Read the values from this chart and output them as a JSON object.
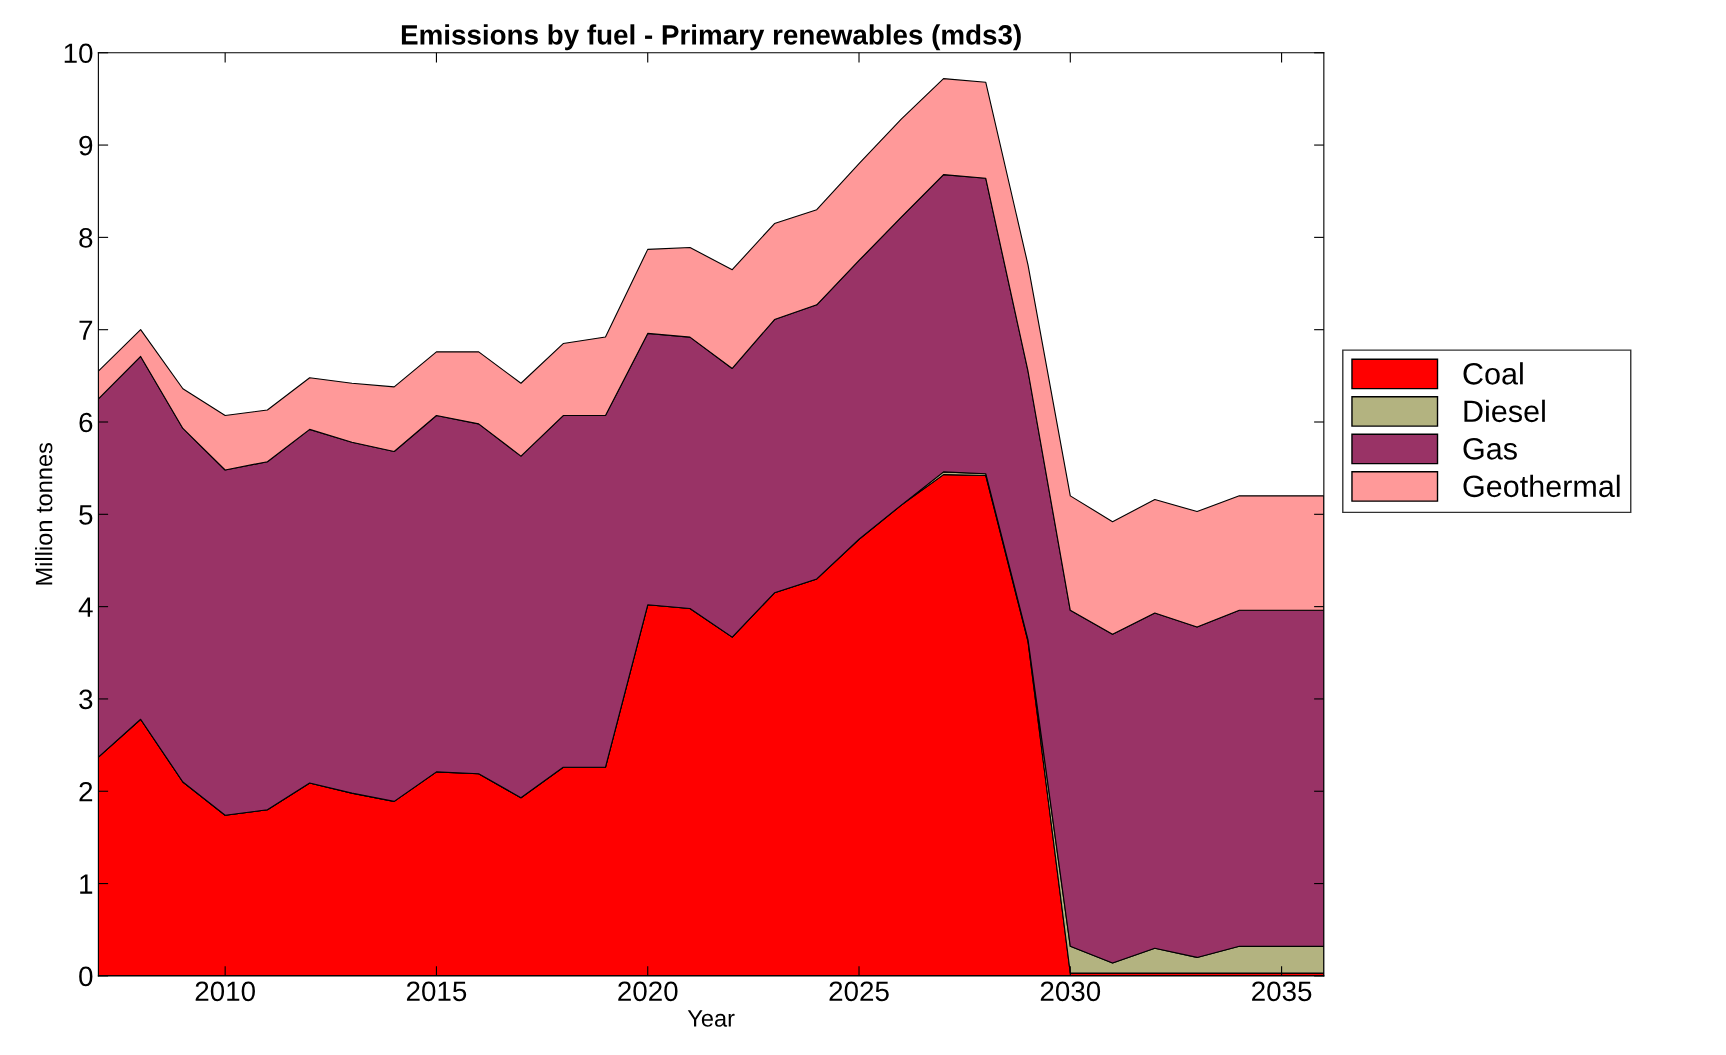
{
  "chart_data": {
    "type": "area",
    "stacked": true,
    "title": "Emissions by fuel - Primary renewables (mds3)",
    "xlabel": "Year",
    "ylabel": "Million tonnes",
    "x": [
      2007,
      2008,
      2009,
      2010,
      2011,
      2012,
      2013,
      2014,
      2015,
      2016,
      2017,
      2018,
      2019,
      2020,
      2021,
      2022,
      2023,
      2024,
      2025,
      2026,
      2027,
      2028,
      2029,
      2030,
      2031,
      2032,
      2033,
      2034,
      2035,
      2036
    ],
    "series": [
      {
        "name": "Coal",
        "color": "#ff0000",
        "values": [
          2.37,
          2.78,
          2.1,
          1.74,
          1.8,
          2.09,
          1.98,
          1.89,
          2.21,
          2.19,
          1.93,
          2.26,
          2.26,
          4.02,
          3.98,
          3.67,
          4.15,
          4.3,
          4.73,
          5.1,
          5.43,
          5.42,
          3.62,
          0.03,
          0.03,
          0.03,
          0.03,
          0.03,
          0.03,
          0.03
        ]
      },
      {
        "name": "Diesel",
        "color": "#b3b380",
        "values": [
          0,
          0,
          0,
          0,
          0,
          0,
          0,
          0,
          0,
          0,
          0,
          0,
          0,
          0,
          0,
          0,
          0,
          0,
          0,
          0,
          0.03,
          0.02,
          0.02,
          0.29,
          0.11,
          0.27,
          0.17,
          0.29,
          0.29,
          0.29
        ]
      },
      {
        "name": "Gas",
        "color": "#993366",
        "values": [
          3.88,
          3.93,
          3.83,
          3.74,
          3.77,
          3.83,
          3.8,
          3.79,
          3.86,
          3.79,
          3.7,
          3.81,
          3.81,
          2.94,
          2.94,
          2.91,
          2.96,
          2.97,
          3.02,
          3.12,
          3.22,
          3.2,
          2.91,
          3.64,
          3.56,
          3.63,
          3.58,
          3.64,
          3.64,
          3.64
        ]
      },
      {
        "name": "Geothermal",
        "color": "#ff9999",
        "values": [
          0.3,
          0.29,
          0.43,
          0.59,
          0.56,
          0.56,
          0.64,
          0.7,
          0.69,
          0.78,
          0.79,
          0.78,
          0.85,
          0.91,
          0.97,
          1.07,
          1.04,
          1.03,
          1.05,
          1.06,
          1.04,
          1.04,
          1.15,
          1.24,
          1.22,
          1.23,
          1.25,
          1.24,
          1.24,
          1.24
        ]
      }
    ],
    "xlim": [
      2007,
      2036
    ],
    "xticks": [
      2010,
      2015,
      2020,
      2025,
      2030,
      2035
    ],
    "ylim": [
      0,
      10
    ],
    "yticks": [
      0,
      1,
      2,
      3,
      4,
      5,
      6,
      7,
      8,
      9,
      10
    ],
    "legend": "right",
    "grid": false
  }
}
